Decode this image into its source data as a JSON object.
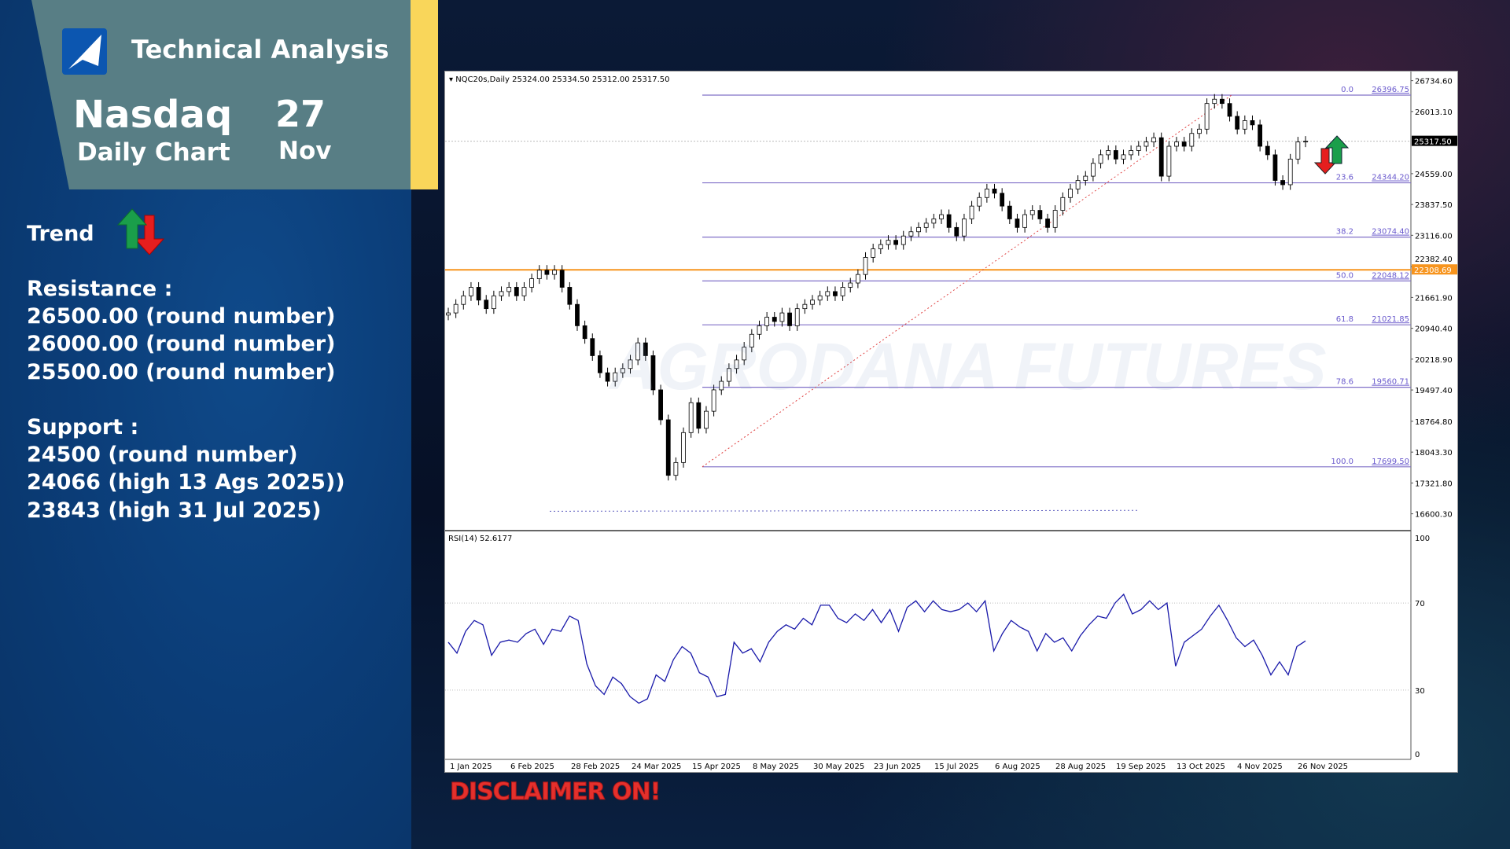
{
  "header": {
    "title": "Technical Analysis",
    "instrument": "Nasdaq",
    "timeframe": "Daily Chart",
    "day": "27",
    "month": "Nov"
  },
  "trend": {
    "label": "Trend",
    "icon": "up-down-arrows-icon"
  },
  "resistance": {
    "label": "Resistance :",
    "levels": [
      "26500.00 (round number)",
      "26000.00 (round number)",
      "25500.00 (round number)"
    ]
  },
  "support": {
    "label": "Support :",
    "levels": [
      "24500 (round number)",
      "24066 (high 13 Ags 2025))",
      "23843 (high 31 Jul 2025)"
    ]
  },
  "disclaimer": "DISCLAIMER ON!",
  "watermark": "AGRODANA FUTURES",
  "colors": {
    "accent_yellow": "#f9d65a",
    "header_teal": "#587e85",
    "panel_blue": "#0b3d78",
    "orange_line": "#f7941d",
    "fib": "#6a5acd",
    "rsi": "#1a1aaa"
  },
  "chart_data": {
    "type": "candlestick",
    "info": "NQC20s,Daily  25324.00 25334.50 25312.00 25317.50",
    "current_price": "25317.50",
    "horizontal_level": "22308.69",
    "ylim": [
      16600.3,
      26734.6
    ],
    "y_ticks": [
      "26734.60",
      "26013.10",
      "24559.00",
      "23837.50",
      "23116.00",
      "22382.40",
      "21661.90",
      "20940.40",
      "20218.90",
      "19497.40",
      "18764.80",
      "18043.30",
      "17321.80",
      "16600.30"
    ],
    "x_ticks": [
      "1 Jan 2025",
      "6 Feb 2025",
      "28 Feb 2025",
      "24 Mar 2025",
      "15 Apr 2025",
      "8 May 2025",
      "30 May 2025",
      "23 Jun 2025",
      "15 Jul 2025",
      "6 Aug 2025",
      "28 Aug 2025",
      "19 Sep 2025",
      "13 Oct 2025",
      "4 Nov 2025",
      "26 Nov 2025"
    ],
    "fibonacci": [
      {
        "level": "0.0",
        "price": "26396.75"
      },
      {
        "level": "23.6",
        "price": "24344.20"
      },
      {
        "level": "38.2",
        "price": "23074.40"
      },
      {
        "level": "50.0",
        "price": "22048.12"
      },
      {
        "level": "61.8",
        "price": "21021.85"
      },
      {
        "level": "78.6",
        "price": "19560.71"
      },
      {
        "level": "100.0",
        "price": "17699.50"
      }
    ],
    "closes": [
      21300,
      21500,
      21700,
      21900,
      21600,
      21400,
      21700,
      21800,
      21900,
      21700,
      21900,
      22100,
      22300,
      22200,
      22300,
      21900,
      21500,
      21000,
      20700,
      20300,
      19900,
      19700,
      19900,
      20000,
      20200,
      20600,
      20300,
      19500,
      18800,
      17500,
      17800,
      18500,
      19200,
      18600,
      19000,
      19500,
      19700,
      20000,
      20200,
      20500,
      20800,
      21000,
      21200,
      21100,
      21300,
      21000,
      21400,
      21500,
      21600,
      21700,
      21800,
      21700,
      21900,
      22000,
      22200,
      22600,
      22800,
      22900,
      23000,
      22900,
      23100,
      23200,
      23300,
      23400,
      23500,
      23600,
      23300,
      23100,
      23500,
      23800,
      24000,
      24200,
      24100,
      23800,
      23500,
      23300,
      23600,
      23700,
      23500,
      23300,
      23700,
      24000,
      24200,
      24400,
      24500,
      24800,
      25000,
      25100,
      24900,
      25000,
      25100,
      25200,
      25300,
      25400,
      24500,
      25200,
      25300,
      25200,
      25500,
      25600,
      26200,
      26300,
      26200,
      25900,
      25600,
      25800,
      25700,
      25200,
      25000,
      24400,
      24300,
      24900,
      25300,
      25317.5
    ],
    "rsi": {
      "label": "RSI(14) 52.6177",
      "ticks": [
        "100",
        "70",
        "30",
        "0"
      ],
      "levels": [
        70,
        30
      ],
      "values": [
        52,
        47,
        57,
        62,
        60,
        46,
        52,
        53,
        52,
        56,
        58,
        51,
        58,
        57,
        64,
        62,
        42,
        32,
        28,
        36,
        33,
        27,
        24,
        26,
        37,
        34,
        44,
        50,
        47,
        38,
        36,
        27,
        28,
        52,
        47,
        49,
        43,
        52,
        57,
        60,
        58,
        63,
        60,
        69,
        69,
        63,
        61,
        65,
        62,
        67,
        61,
        67,
        57,
        68,
        71,
        66,
        71,
        67,
        66,
        67,
        70,
        66,
        71,
        48,
        56,
        62,
        59,
        57,
        48,
        56,
        52,
        54,
        48,
        55,
        60,
        64,
        63,
        70,
        74,
        65,
        67,
        71,
        67,
        70,
        41,
        52,
        55,
        58,
        64,
        69,
        62,
        54,
        50,
        53,
        46,
        37,
        43,
        37,
        50,
        52.6
      ]
    }
  }
}
